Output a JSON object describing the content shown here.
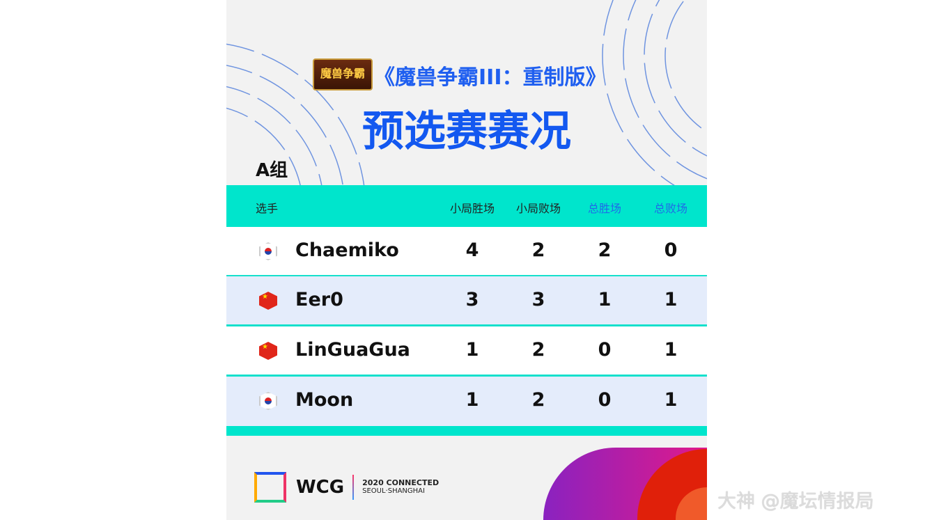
{
  "header": {
    "logo_text": "魔兽争霸",
    "subtitle": "《魔兽争霸III：重制版》",
    "title": "预选赛赛况",
    "group": "A组"
  },
  "table": {
    "columns": [
      "选手",
      "小局胜场",
      "小局败场",
      "总胜场",
      "总败场"
    ],
    "rows": [
      {
        "flag": "kr",
        "player": "Chaemiko",
        "game_wins": "4",
        "game_losses": "2",
        "total_wins": "2",
        "total_losses": "0"
      },
      {
        "flag": "cn",
        "player": "Eer0",
        "game_wins": "3",
        "game_losses": "3",
        "total_wins": "1",
        "total_losses": "1"
      },
      {
        "flag": "cn",
        "player": "LinGuaGua",
        "game_wins": "1",
        "game_losses": "2",
        "total_wins": "0",
        "total_losses": "1"
      },
      {
        "flag": "kr",
        "player": "Moon",
        "game_wins": "1",
        "game_losses": "2",
        "total_wins": "0",
        "total_losses": "1"
      }
    ]
  },
  "footer": {
    "brand": "WCG",
    "tagline1": "2020 CONNECTED",
    "tagline2": "SEOUL·SHANGHAI"
  },
  "watermark": "大神 @魔坛情报局",
  "colors": {
    "accent": "#00e5cc",
    "title_blue": "#1358f0",
    "row_alt": "#e4ecfb"
  }
}
